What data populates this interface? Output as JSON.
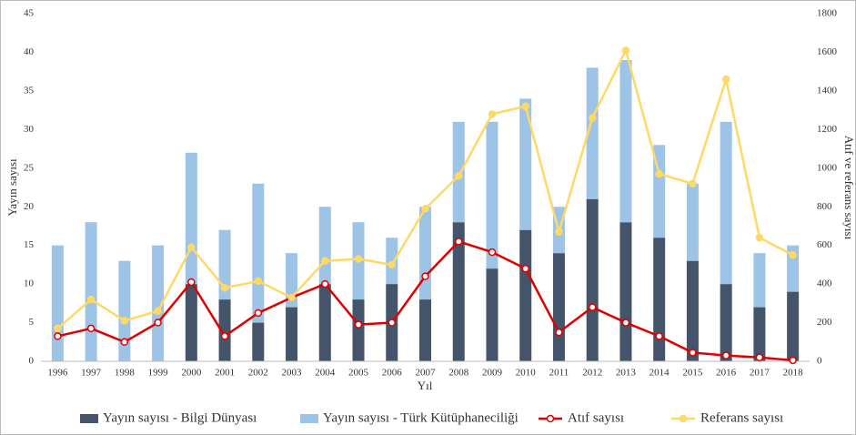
{
  "chart_data": {
    "type": "bar-line",
    "categories": [
      "1996",
      "1997",
      "1998",
      "1999",
      "2000",
      "2001",
      "2002",
      "2003",
      "2004",
      "2005",
      "2006",
      "2007",
      "2008",
      "2009",
      "2010",
      "2011",
      "2012",
      "2013",
      "2014",
      "2015",
      "2016",
      "2017",
      "2018"
    ],
    "xlabel": "Yıl",
    "ylabel": "Yayın sayısı",
    "y2label": "Atıf ve referans sayısı",
    "ylim": [
      0,
      45
    ],
    "yticks": [
      0,
      5,
      10,
      15,
      20,
      25,
      30,
      35,
      40,
      45
    ],
    "y2lim": [
      0,
      1800
    ],
    "y2ticks": [
      0,
      200,
      400,
      600,
      800,
      1000,
      1200,
      1400,
      1600,
      1800
    ],
    "grid": false,
    "stacked": true,
    "legend": "bottom",
    "series": [
      {
        "name": "Yayın sayısı - Bilgi Dünyası",
        "kind": "bar",
        "color": "#44546a",
        "values": [
          0,
          0,
          0,
          0,
          10,
          8,
          5,
          7,
          10,
          8,
          10,
          8,
          18,
          12,
          17,
          14,
          21,
          18,
          16,
          13,
          10,
          7,
          9
        ]
      },
      {
        "name": "Yayın sayısı - Türk Kütüphaneciliği",
        "kind": "bar",
        "color": "#9dc3e6",
        "values": [
          15,
          18,
          13,
          15,
          17,
          9,
          18,
          7,
          10,
          10,
          6,
          12,
          13,
          19,
          17,
          6,
          17,
          21,
          12,
          10,
          21,
          7,
          6
        ]
      },
      {
        "name": "Atıf sayısı",
        "kind": "line",
        "axis": "y2",
        "color": "#e00000",
        "values": [
          130,
          170,
          100,
          200,
          410,
          130,
          250,
          330,
          400,
          190,
          200,
          440,
          620,
          565,
          480,
          150,
          280,
          200,
          130,
          45,
          30,
          20,
          5
        ]
      },
      {
        "name": "Referans sayısı",
        "kind": "line",
        "axis": "y2",
        "color": "#ffd966",
        "values": [
          170,
          320,
          210,
          260,
          590,
          380,
          415,
          330,
          520,
          530,
          500,
          790,
          960,
          1280,
          1320,
          670,
          1260,
          1610,
          970,
          920,
          1460,
          640,
          550
        ]
      }
    ]
  }
}
